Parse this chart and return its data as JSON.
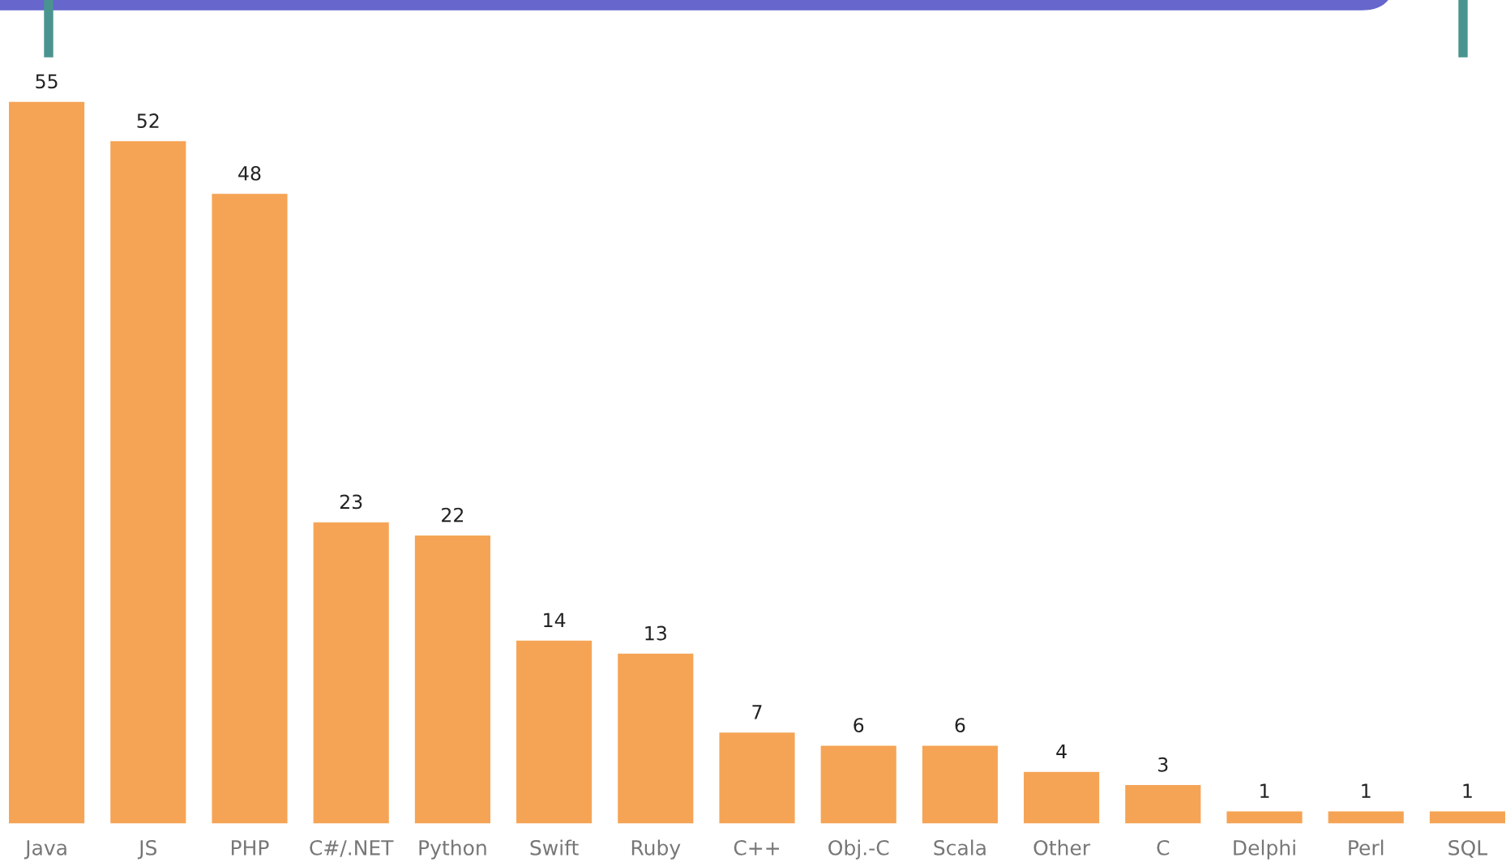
{
  "chart_data": {
    "type": "bar",
    "categories": [
      "Java",
      "JS",
      "PHP",
      "C#/.NET",
      "Python",
      "Swift",
      "Ruby",
      "C++",
      "Obj.-C",
      "Scala",
      "Other",
      "C",
      "Delphi",
      "Perl",
      "SQL"
    ],
    "values": [
      55,
      52,
      48,
      23,
      22,
      14,
      13,
      7,
      6,
      6,
      4,
      3,
      1,
      1,
      1
    ],
    "color": "#f5a455",
    "data_labels": true,
    "grid": false,
    "legend": false
  }
}
